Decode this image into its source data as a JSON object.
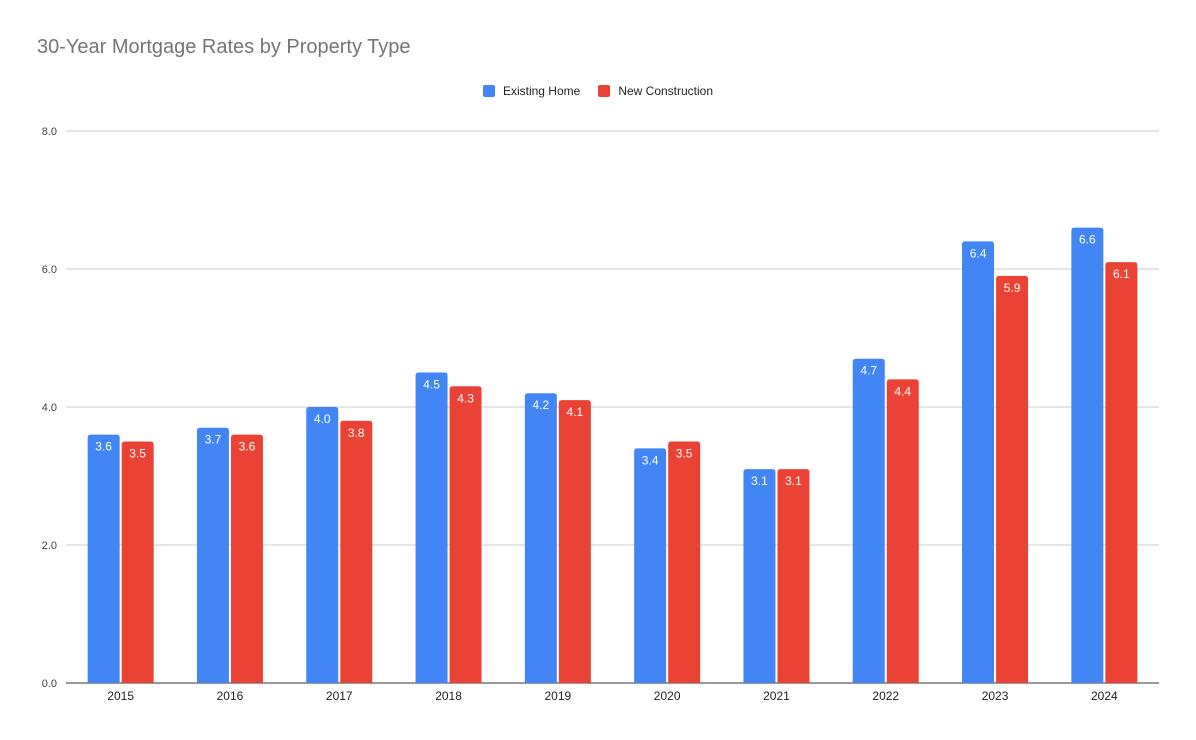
{
  "chart_data": {
    "type": "bar",
    "title": "30-Year Mortgage Rates by Property Type",
    "xlabel": "",
    "ylabel": "",
    "categories": [
      "2015",
      "2016",
      "2017",
      "2018",
      "2019",
      "2020",
      "2021",
      "2022",
      "2023",
      "2024"
    ],
    "series": [
      {
        "name": "Existing Home",
        "color": "#4285f4",
        "values": [
          3.6,
          3.7,
          4.0,
          4.5,
          4.2,
          3.4,
          3.1,
          4.7,
          6.4,
          6.6
        ],
        "labels": [
          "3.6",
          "3.7",
          "4.0",
          "4.5",
          "4.2",
          "3.4",
          "3.1",
          "4.7",
          "6.4",
          "6.6"
        ]
      },
      {
        "name": "New Construction",
        "color": "#ea4335",
        "values": [
          3.5,
          3.6,
          3.8,
          4.3,
          4.1,
          3.5,
          3.1,
          4.4,
          5.9,
          6.1
        ],
        "labels": [
          "3.5",
          "3.6",
          "3.8",
          "4.3",
          "4.1",
          "3.5",
          "3.1",
          "4.4",
          "5.9",
          "6.1"
        ]
      }
    ],
    "ylim": [
      0,
      8
    ],
    "yticks": [
      "0.0",
      "2.0",
      "4.0",
      "6.0",
      "8.0"
    ],
    "ytick_values": [
      0,
      2,
      4,
      6,
      8
    ],
    "grid": true,
    "legend_position": "top-center"
  }
}
